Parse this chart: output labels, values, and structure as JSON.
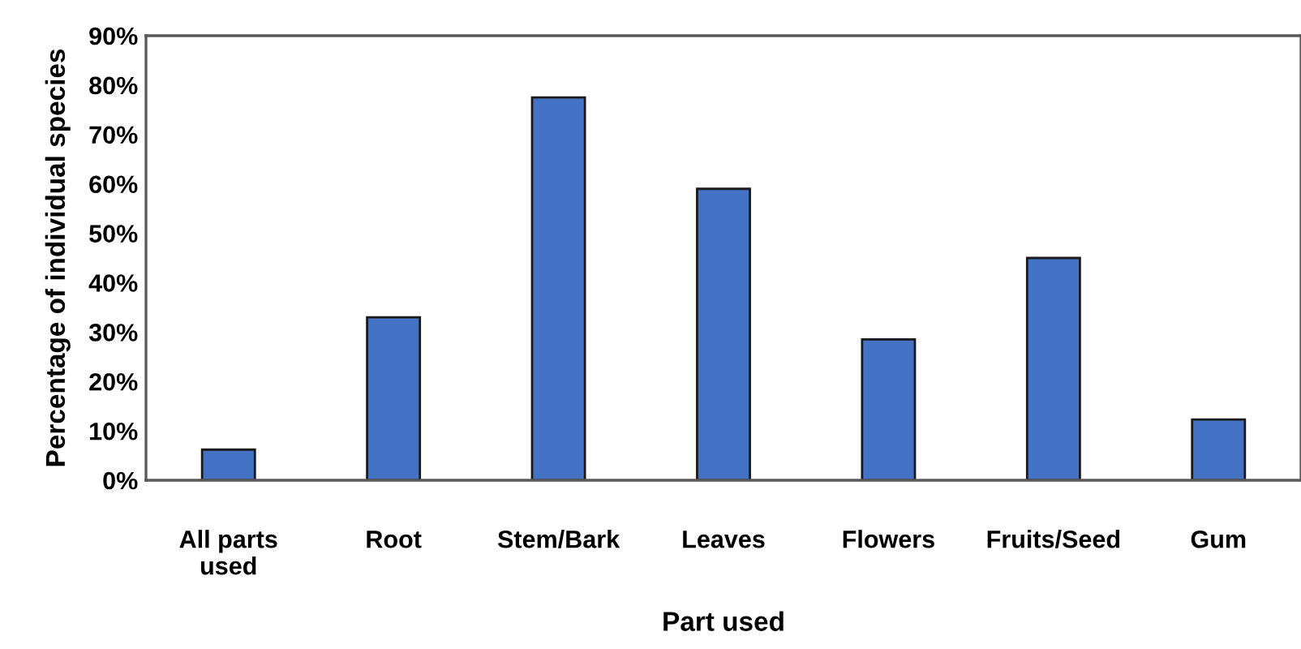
{
  "chart_data": {
    "type": "bar",
    "categories": [
      "All parts\nused",
      "Root",
      "Stem/Bark",
      "Leaves",
      "Flowers",
      "Fruits/Seed",
      "Gum"
    ],
    "values": [
      6.2,
      33,
      77.5,
      59,
      28.5,
      45,
      12.3
    ],
    "color": "#4472c4",
    "xlabel": "Part used",
    "ylabel": "Percentage of individual species",
    "ylim": [
      0,
      90
    ],
    "yticks": [
      {
        "value": 0,
        "label": "0%"
      },
      {
        "value": 10,
        "label": "10%"
      },
      {
        "value": 20,
        "label": "20%"
      },
      {
        "value": 30,
        "label": "30%"
      },
      {
        "value": 40,
        "label": "40%"
      },
      {
        "value": 50,
        "label": "50%"
      },
      {
        "value": 60,
        "label": "60%"
      },
      {
        "value": 70,
        "label": "70%"
      },
      {
        "value": 80,
        "label": "80%"
      },
      {
        "value": 90,
        "label": "90%"
      }
    ],
    "grid": false,
    "legend": false
  }
}
